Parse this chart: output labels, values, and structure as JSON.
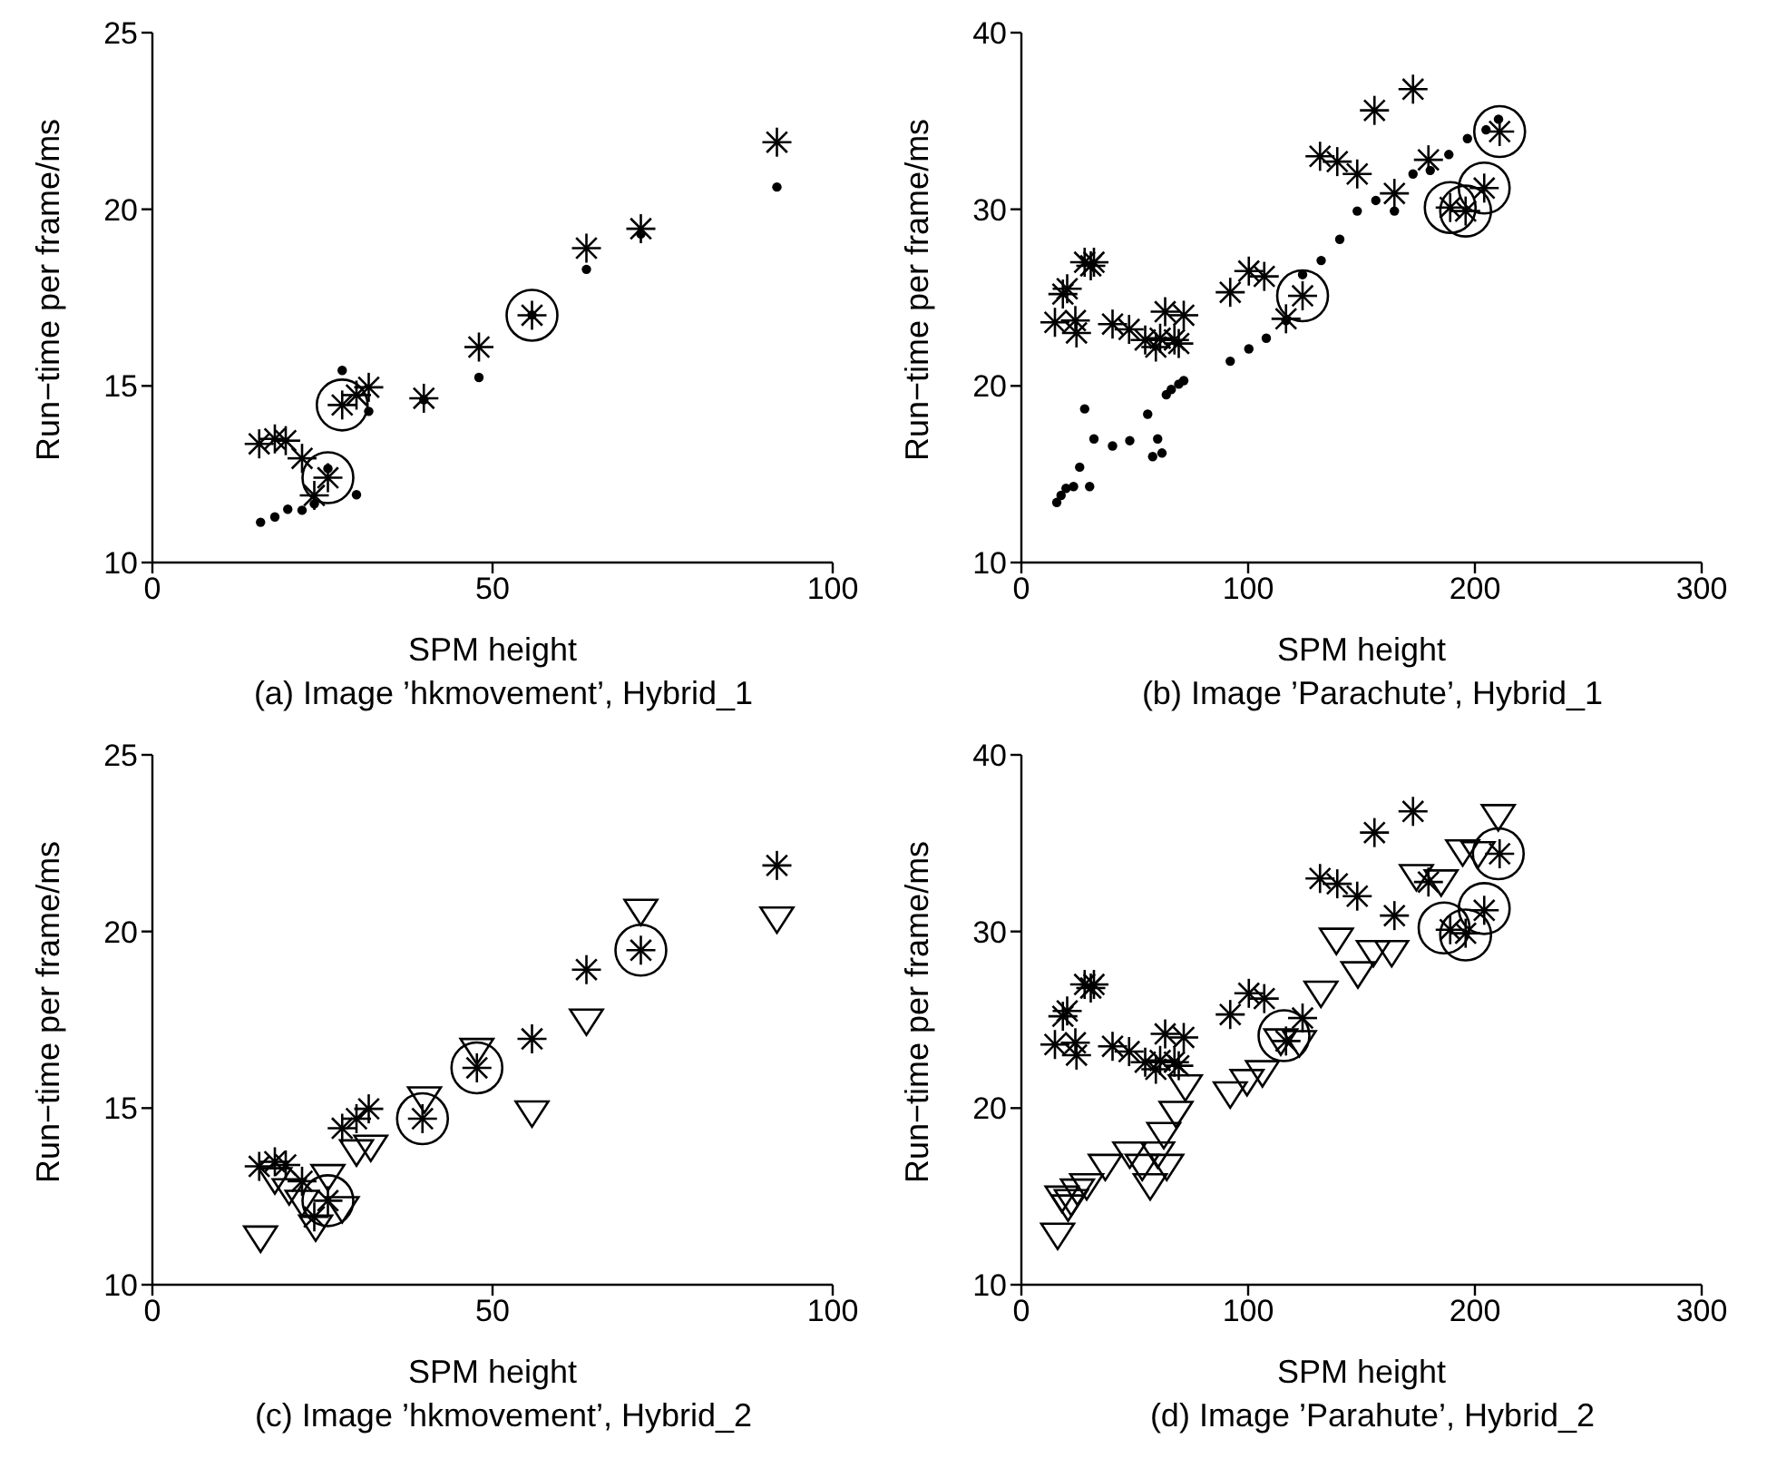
{
  "chart_data": [
    {
      "type": "scatter",
      "title": "(a) Image ’hkmovement’, Hybrid_1",
      "xlabel": "SPM height",
      "ylabel": "Run−time per frame/ms",
      "xlim": [
        0,
        100
      ],
      "xticks": [
        0,
        50,
        100
      ],
      "ylim": [
        10,
        25
      ],
      "yticks": [
        10,
        15,
        20,
        25
      ],
      "grid": false,
      "legend": false,
      "series": [
        {
          "marker": "cross",
          "color": "#000000",
          "x": [
            15.7,
            18.0,
            19.6,
            22.0,
            23.8,
            25.8,
            27.9,
            30.0,
            31.8,
            39.9,
            48.0,
            55.8,
            63.8,
            71.8,
            91.8
          ],
          "values": [
            13.36,
            13.5,
            13.45,
            12.95,
            11.9,
            12.4,
            14.46,
            14.74,
            14.96,
            14.65,
            16.1,
            17.0,
            18.9,
            19.45,
            21.9
          ]
        },
        {
          "marker": "circle",
          "color": "#000000",
          "x": [
            15.9,
            18.0,
            19.9,
            22.0,
            23.8,
            25.8,
            27.9,
            30.0,
            31.8,
            39.9,
            48.0,
            55.8,
            63.8,
            71.8,
            91.8
          ],
          "values": [
            11.14,
            11.29,
            11.51,
            11.48,
            11.66,
            12.66,
            15.44,
            11.92,
            14.28,
            14.61,
            15.24,
            17.01,
            18.3,
            19.3,
            20.63
          ]
        },
        {
          "type": "bubble",
          "color": "#000000",
          "x": [
            25.8,
            27.9,
            55.8
          ],
          "values": [
            12.4,
            14.46,
            17.0
          ],
          "sizes": [
            1,
            1,
            1
          ]
        }
      ]
    },
    {
      "type": "scatter",
      "title": "(b) Image ’Parachute’, Hybrid_1",
      "xlabel": "SPM height",
      "ylabel": "Run−time per frame/ms",
      "xlim": [
        0,
        300
      ],
      "xticks": [
        0,
        100,
        200,
        300
      ],
      "ylim": [
        10,
        40
      ],
      "yticks": [
        10,
        20,
        30,
        40
      ],
      "grid": false,
      "legend": false,
      "series": [
        {
          "marker": "cross",
          "color": "#000000",
          "x": [
            14.8,
            18.3,
            20.2,
            23.8,
            24.3,
            27.9,
            30.6,
            32,
            40.2,
            47.5,
            54.6,
            59.3,
            61.2,
            63.4,
            67.5,
            71.6,
            69.4,
            92.1,
            100.3,
            107.1,
            116.7,
            124.0,
            131.7,
            139.3,
            148.1,
            155.7,
            164.5,
            172.7,
            179.5,
            189.1,
            195.9,
            204.1,
            210.9
          ],
          "values": [
            23.6,
            25.2,
            25.5,
            23.7,
            23.0,
            27.0,
            26.8,
            27.0,
            23.5,
            23.2,
            22.6,
            22.2,
            22.7,
            24.2,
            22.6,
            24.0,
            22.4,
            25.3,
            26.5,
            26.2,
            23.8,
            25.1,
            33.0,
            32.7,
            32.0,
            35.6,
            30.9,
            36.8,
            32.8,
            30.1,
            29.9,
            31.2,
            34.4
          ]
        },
        {
          "marker": "circle",
          "color": "#000000",
          "x": [
            15.6,
            17.5,
            19.7,
            23.0,
            25.7,
            30.1,
            27.9,
            32.0,
            40.2,
            47.8,
            55.7,
            57.9,
            60.1,
            62.0,
            63.9,
            66.1,
            69.4,
            71.6,
            92.1,
            100.3,
            108.0,
            116.7,
            124.0,
            132.2,
            140.4,
            148.1,
            156.3,
            164.5,
            172.7,
            180.3,
            188.5,
            196.7,
            204.9,
            210.4
          ],
          "values": [
            13.4,
            13.8,
            14.2,
            14.3,
            15.4,
            14.3,
            18.7,
            17.0,
            16.6,
            16.9,
            18.4,
            16.0,
            17.0,
            16.2,
            19.5,
            19.8,
            20.1,
            20.3,
            21.4,
            22.1,
            22.7,
            23.7,
            26.3,
            27.1,
            28.3,
            29.9,
            30.5,
            29.9,
            32.0,
            32.2,
            33.1,
            34.0,
            34.5,
            35.1
          ]
        },
        {
          "type": "bubble",
          "color": "#000000",
          "x": [
            124.0,
            189.1,
            195.9,
            204.1,
            210.9
          ],
          "values": [
            25.1,
            30.1,
            29.9,
            31.2,
            34.4
          ],
          "sizes": [
            1,
            1,
            1,
            1,
            1
          ]
        }
      ]
    },
    {
      "type": "scatter",
      "title": "(c) Image ’hkmovement’, Hybrid_2",
      "xlabel": "SPM height",
      "ylabel": "Run−time per frame/ms",
      "xlim": [
        0,
        100
      ],
      "xticks": [
        0,
        50,
        100
      ],
      "ylim": [
        10,
        25
      ],
      "yticks": [
        10,
        15,
        20,
        25
      ],
      "grid": false,
      "legend": false,
      "series": [
        {
          "marker": "cross",
          "color": "#000000",
          "x": [
            15.7,
            18.0,
            19.6,
            22.0,
            23.8,
            25.8,
            27.9,
            30.0,
            31.8,
            39.7,
            47.7,
            55.8,
            63.8,
            71.8,
            91.8
          ],
          "values": [
            13.35,
            13.48,
            13.39,
            12.93,
            11.92,
            12.38,
            14.43,
            14.7,
            14.98,
            14.7,
            16.14,
            16.96,
            18.92,
            19.47,
            21.87
          ]
        },
        {
          "marker": "triangle",
          "color": "#000000",
          "x": [
            15.9,
            18.0,
            20.1,
            22.0,
            24.0,
            25.8,
            27.9,
            30.0,
            32.1,
            40.0,
            47.7,
            55.8,
            63.8,
            71.8,
            91.8
          ],
          "values": [
            11.37,
            13.02,
            12.71,
            12.38,
            11.68,
            13.11,
            12.2,
            13.81,
            13.94,
            15.31,
            16.68,
            14.91,
            17.51,
            20.62,
            20.4
          ]
        },
        {
          "type": "bubble",
          "color": "#000000",
          "x": [
            25.8,
            39.7,
            47.7,
            71.8
          ],
          "values": [
            12.38,
            14.7,
            16.14,
            19.47
          ],
          "sizes": [
            1,
            1,
            1,
            1
          ]
        }
      ]
    },
    {
      "type": "scatter",
      "title": "(d) Image ’Parahute’, Hybrid_2",
      "xlabel": "SPM height",
      "ylabel": "Run−time per frame/ms",
      "xlim": [
        0,
        300
      ],
      "xticks": [
        0,
        100,
        200,
        300
      ],
      "ylim": [
        10,
        40
      ],
      "yticks": [
        10,
        20,
        30,
        40
      ],
      "grid": false,
      "legend": false,
      "series": [
        {
          "marker": "cross",
          "color": "#000000",
          "x": [
            14.8,
            18.3,
            20.2,
            23.8,
            24.3,
            27.9,
            30.6,
            32,
            40.2,
            47.5,
            54.6,
            59.3,
            61.2,
            63.4,
            67.5,
            71.6,
            69.4,
            92.1,
            100.3,
            107.1,
            116.7,
            124.0,
            131.7,
            139.3,
            148.1,
            155.7,
            164.5,
            172.7,
            179.5,
            189.1,
            195.9,
            204.1,
            210.9
          ],
          "values": [
            23.6,
            25.2,
            25.5,
            23.7,
            23.0,
            27.0,
            26.8,
            27.0,
            23.5,
            23.2,
            22.6,
            22.2,
            22.7,
            24.2,
            22.6,
            24.0,
            22.4,
            25.3,
            26.5,
            26.2,
            23.8,
            25.1,
            33.0,
            32.7,
            32.0,
            35.6,
            30.9,
            36.8,
            32.8,
            30.1,
            29.9,
            31.2,
            34.4
          ]
        },
        {
          "marker": "triangle",
          "color": "#000000",
          "x": [
            16.0,
            17.9,
            22.0,
            24.7,
            28.8,
            20.6,
            37.0,
            47.8,
            53.3,
            56.8,
            60.1,
            64.1,
            62.8,
            68.2,
            72.3,
            92.1,
            99.5,
            106.3,
            114.4,
            122.6,
            132.1,
            138.9,
            148.4,
            155.2,
            163.3,
            174.2,
            185.1,
            194.6,
            201.4,
            210.3
          ],
          "values": [
            12.9,
            15.0,
            14.8,
            15.4,
            15.7,
            14.5,
            16.8,
            17.5,
            16.8,
            15.7,
            17.5,
            16.8,
            18.6,
            19.8,
            21.3,
            20.9,
            21.6,
            22.1,
            23.9,
            23.8,
            26.6,
            29.6,
            27.7,
            28.9,
            28.9,
            33.2,
            32.9,
            34.6,
            34.5,
            36.6
          ]
        },
        {
          "type": "bubble",
          "color": "#000000",
          "x": [
            115.8,
            186.4,
            195.9,
            204.1,
            210.3
          ],
          "values": [
            24.1,
            30.2,
            29.8,
            31.3,
            34.4
          ],
          "sizes": [
            1,
            1,
            1,
            1,
            1
          ]
        }
      ]
    }
  ]
}
